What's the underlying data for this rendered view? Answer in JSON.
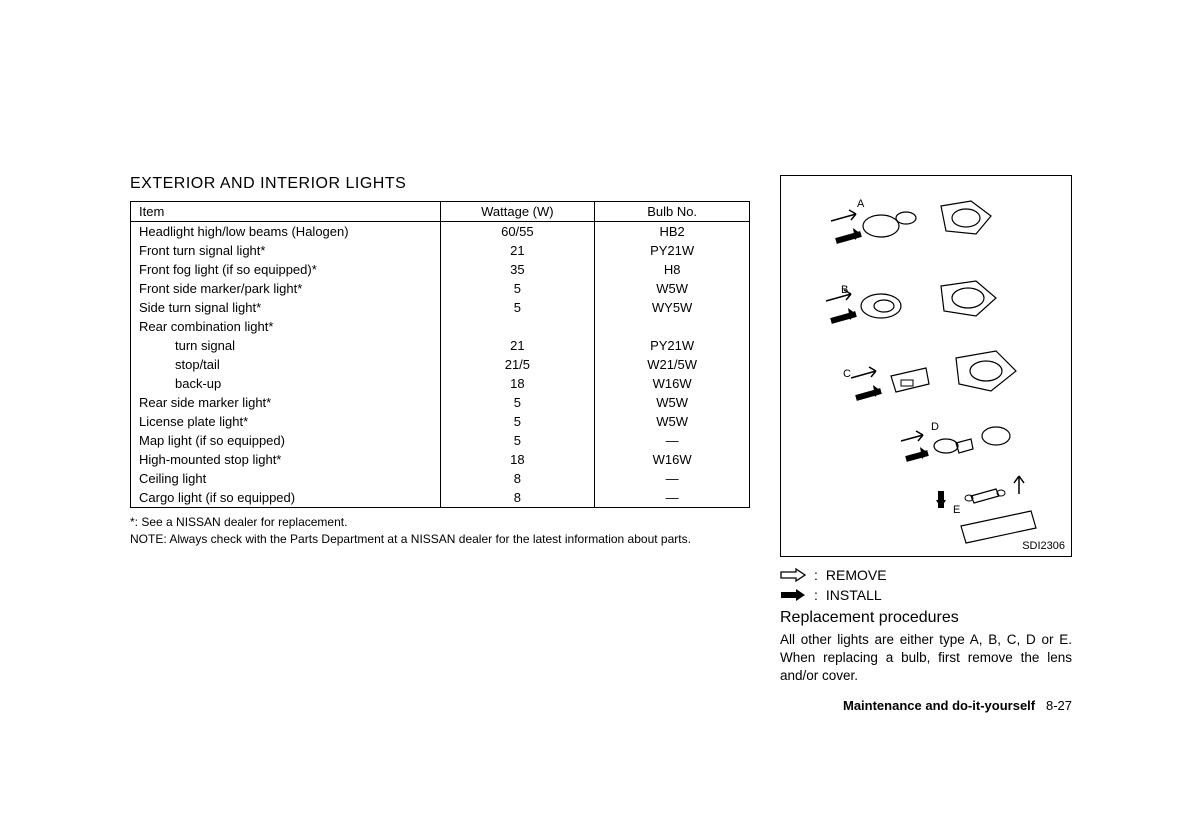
{
  "title": "EXTERIOR AND INTERIOR LIGHTS",
  "table": {
    "headers": [
      "Item",
      "Wattage (W)",
      "Bulb No."
    ],
    "rows": [
      {
        "item": "Headlight high/low beams (Halogen)",
        "wattage": "60/55",
        "bulb": "HB2",
        "indent": false
      },
      {
        "item": "Front turn signal light*",
        "wattage": "21",
        "bulb": "PY21W",
        "indent": false
      },
      {
        "item": "Front fog light (if so equipped)*",
        "wattage": "35",
        "bulb": "H8",
        "indent": false
      },
      {
        "item": "Front side marker/park light*",
        "wattage": "5",
        "bulb": "W5W",
        "indent": false
      },
      {
        "item": "Side turn signal light*",
        "wattage": "5",
        "bulb": "WY5W",
        "indent": false
      },
      {
        "item": "Rear combination light*",
        "wattage": "",
        "bulb": "",
        "indent": false
      },
      {
        "item": "turn signal",
        "wattage": "21",
        "bulb": "PY21W",
        "indent": true
      },
      {
        "item": "stop/tail",
        "wattage": "21/5",
        "bulb": "W21/5W",
        "indent": true
      },
      {
        "item": "back-up",
        "wattage": "18",
        "bulb": "W16W",
        "indent": true
      },
      {
        "item": "Rear side marker light*",
        "wattage": "5",
        "bulb": "W5W",
        "indent": false
      },
      {
        "item": "License plate light*",
        "wattage": "5",
        "bulb": "W5W",
        "indent": false
      },
      {
        "item": "Map light (if so equipped)",
        "wattage": "5",
        "bulb": "—",
        "indent": false
      },
      {
        "item": "High-mounted stop light*",
        "wattage": "18",
        "bulb": "W16W",
        "indent": false
      },
      {
        "item": "Ceiling light",
        "wattage": "8",
        "bulb": "—",
        "indent": false
      },
      {
        "item": "Cargo light (if so equipped)",
        "wattage": "8",
        "bulb": "—",
        "indent": false
      }
    ]
  },
  "footnote1": "*: See a NISSAN dealer for replacement.",
  "footnote2": "NOTE: Always check with the Parts Department at a NISSAN dealer for the latest information about parts.",
  "diagram": {
    "labels": [
      "A",
      "B",
      "C",
      "D",
      "E"
    ],
    "code": "SDI2306"
  },
  "legend": {
    "remove": "REMOVE",
    "install": "INSTALL"
  },
  "subheading": "Replacement procedures",
  "body": "All other lights are either type A, B, C, D or E. When replacing a bulb, first remove the lens and/or cover.",
  "footer": {
    "section": "Maintenance and do-it-yourself",
    "page": "8-27"
  }
}
